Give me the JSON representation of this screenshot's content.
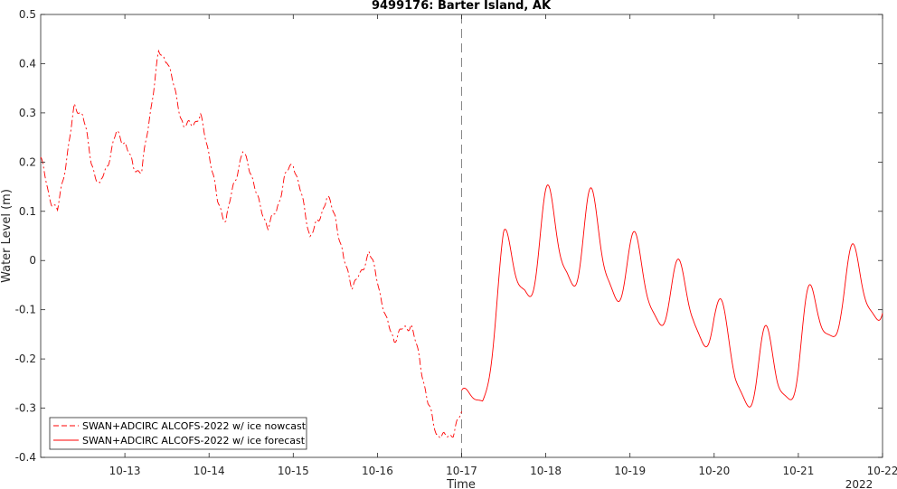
{
  "chart_data": {
    "type": "line",
    "title": "9499176: Barter Island, AK",
    "xlabel": "Time",
    "ylabel": "Water Level (m)",
    "x_year_label": "2022",
    "ylim": [
      -0.4,
      0.5
    ],
    "xlim": [
      "10-12 00:00",
      "10-22 00:00"
    ],
    "x_ticks": [
      "10-13",
      "10-14",
      "10-15",
      "10-16",
      "10-17",
      "10-18",
      "10-19",
      "10-20",
      "10-21",
      "10-22"
    ],
    "y_ticks": [
      "-0.4",
      "-0.3",
      "-0.2",
      "-0.1",
      "0",
      "0.1",
      "0.2",
      "0.3",
      "0.4",
      "0.5"
    ],
    "nowcast_end": "10-17 00:00",
    "grid": false,
    "legend_position": "bottom-left",
    "colors": {
      "series": "#ff0000",
      "divider": "#888888",
      "axis": "#262626"
    },
    "series": [
      {
        "name": "SWAN+ADCIRC ALCOFS-2022 w/ ice nowcast",
        "style": "dashed",
        "x_days": [
          0.0,
          0.1,
          0.2,
          0.3,
          0.4,
          0.5,
          0.6,
          0.7,
          0.8,
          0.9,
          1.0,
          1.1,
          1.2,
          1.3,
          1.4,
          1.5,
          1.6,
          1.7,
          1.8,
          1.9,
          2.0,
          2.1,
          2.2,
          2.3,
          2.4,
          2.5,
          2.6,
          2.7,
          2.8,
          2.9,
          3.0,
          3.1,
          3.2,
          3.3,
          3.4,
          3.5,
          3.6,
          3.7,
          3.8,
          3.9,
          4.0,
          4.1,
          4.2,
          4.3,
          4.4,
          4.5,
          4.6,
          4.7,
          4.8,
          4.9,
          5.0
        ],
        "y": [
          0.21,
          0.13,
          0.1,
          0.2,
          0.31,
          0.3,
          0.2,
          0.15,
          0.2,
          0.26,
          0.24,
          0.19,
          0.18,
          0.3,
          0.42,
          0.41,
          0.34,
          0.27,
          0.28,
          0.29,
          0.22,
          0.12,
          0.08,
          0.16,
          0.22,
          0.18,
          0.11,
          0.07,
          0.1,
          0.17,
          0.2,
          0.13,
          0.05,
          0.08,
          0.13,
          0.09,
          0.0,
          -0.05,
          -0.03,
          0.02,
          -0.04,
          -0.12,
          -0.16,
          -0.14,
          -0.13,
          -0.2,
          -0.29,
          -0.35,
          -0.36,
          -0.35,
          -0.31
        ]
      },
      {
        "name": "SWAN+ADCIRC ALCOFS-2022 w/ ice forecast",
        "style": "solid",
        "x_days": [
          5.0,
          5.25,
          5.5,
          5.75,
          6.0,
          6.25,
          6.5,
          6.75,
          7.0,
          7.25,
          7.5,
          7.75,
          8.0,
          8.25,
          8.5,
          8.75,
          9.0,
          9.25,
          9.5,
          9.75,
          10.0
        ],
        "y": [
          -0.3,
          -0.24,
          -0.05,
          0.01,
          0.03,
          0.04,
          0.03,
          0.01,
          -0.03,
          -0.06,
          -0.08,
          -0.09,
          -0.13,
          -0.22,
          -0.24,
          -0.23,
          -0.19,
          -0.12,
          -0.07,
          -0.06,
          -0.04
        ],
        "amplitude": [
          0.03,
          0.06,
          0.09,
          0.1,
          0.1,
          0.1,
          0.1,
          0.09,
          0.08,
          0.07,
          0.07,
          0.07,
          0.07,
          0.06,
          0.08,
          0.09,
          0.09,
          0.08,
          0.08,
          0.08,
          0.09
        ]
      }
    ]
  }
}
